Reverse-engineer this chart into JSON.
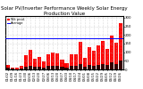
{
  "title": "Solar PV/Inverter Performance Weekly Solar Energy Production Value",
  "title_fontsize": 4.0,
  "bar_color": "#ff0000",
  "dark_bar_color": "#330000",
  "avg_line_color": "#0000ff",
  "avg_value": 180,
  "background_color": "#ffffff",
  "grid_color": "#bbbbbb",
  "weeks": [
    "01/02",
    "01/09",
    "01/16",
    "01/23",
    "01/30",
    "02/06",
    "02/13",
    "02/20",
    "02/27",
    "03/06",
    "03/13",
    "03/20",
    "03/27",
    "04/03",
    "04/10",
    "04/17",
    "04/24",
    "05/01",
    "05/08",
    "05/15",
    "05/22",
    "05/29",
    "06/05",
    "06/12",
    "06/19",
    "06/26"
  ],
  "values": [
    25,
    10,
    8,
    20,
    85,
    115,
    60,
    70,
    45,
    90,
    100,
    95,
    55,
    35,
    90,
    88,
    160,
    65,
    130,
    110,
    140,
    165,
    120,
    195,
    155,
    270
  ],
  "values2": [
    8,
    3,
    2,
    5,
    18,
    22,
    14,
    16,
    10,
    20,
    22,
    20,
    13,
    9,
    20,
    19,
    32,
    15,
    26,
    22,
    28,
    33,
    24,
    39,
    31,
    54
  ],
  "ylim": [
    0,
    310
  ],
  "avg_line_y": 0.535,
  "tick_label_fontsize": 2.8
}
